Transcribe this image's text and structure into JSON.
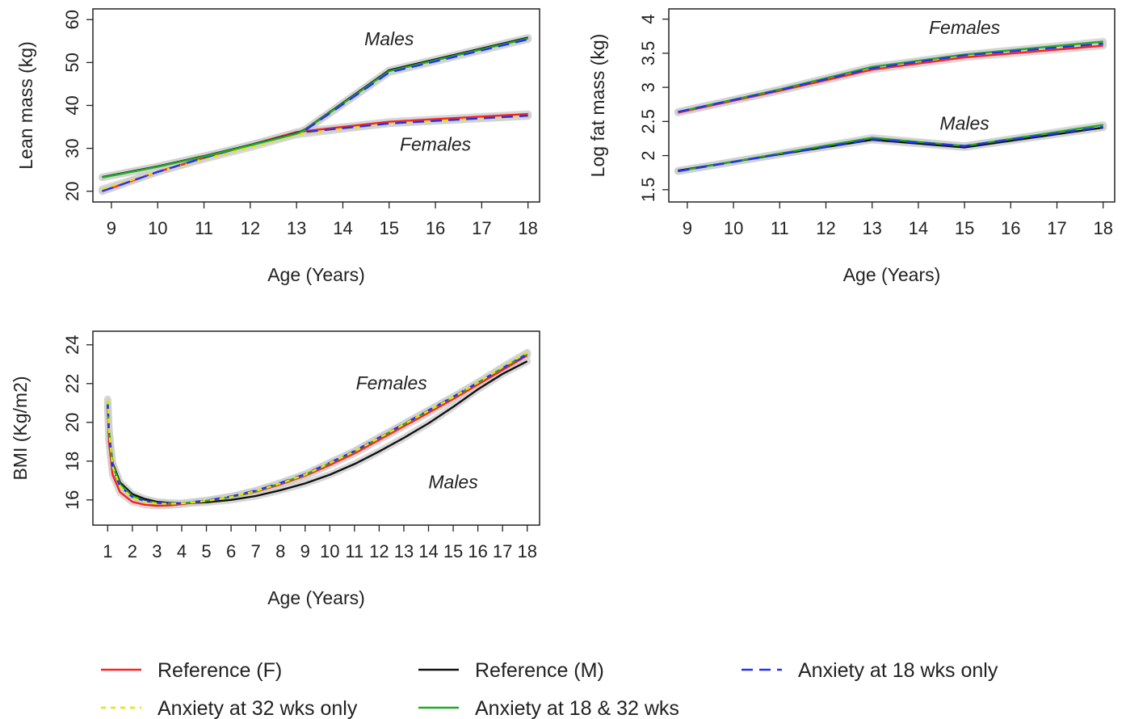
{
  "legend": [
    {
      "label": "Reference (F)",
      "color": "#ff2020",
      "dash": "solid"
    },
    {
      "label": "Reference (M)",
      "color": "#111111",
      "dash": "solid"
    },
    {
      "label": "Anxiety at 18 wks only",
      "color": "#2233ee",
      "dash": "dashed"
    },
    {
      "label": "Anxiety at 32 wks only",
      "color": "#e6e600",
      "dash": "dotted"
    },
    {
      "label": "Anxiety at 18 & 32 wks",
      "color": "#22aa22",
      "dash": "solid"
    }
  ],
  "chart_data": [
    {
      "type": "line",
      "xlabel": "Age (Years)",
      "ylabel": "Lean mass (kg)",
      "xlim": [
        8.6,
        18.25
      ],
      "ylim": [
        17.5,
        62.5
      ],
      "xticks": [
        9,
        10,
        11,
        12,
        13,
        14,
        15,
        16,
        17,
        18
      ],
      "yticks": [
        20,
        30,
        40,
        50,
        60
      ],
      "annotations": [
        {
          "text": "Males",
          "x": 15,
          "y": 54
        },
        {
          "text": "Females",
          "x": 16,
          "y": 29.5
        }
      ],
      "series": [
        {
          "name": "Reference (F)",
          "x": [
            8.8,
            10,
            11,
            12,
            13,
            15,
            18
          ],
          "y": [
            20.0,
            24.5,
            27.8,
            30.8,
            33.8,
            36.2,
            38.0
          ]
        },
        {
          "name": "Anxiety at 32 wks only",
          "x": [
            8.8,
            10,
            11,
            12,
            13,
            15,
            18
          ],
          "y": [
            20.5,
            24.5,
            27.5,
            30.2,
            33.2,
            35.8,
            37.5
          ]
        },
        {
          "name": "Anxiety at 18 wks only",
          "x": [
            8.8,
            10,
            11,
            12,
            13,
            15,
            18
          ],
          "y": [
            20.0,
            24.5,
            27.8,
            30.8,
            33.6,
            35.8,
            37.6
          ]
        },
        {
          "name": "Reference (M)",
          "x": [
            8.8,
            10,
            11,
            12,
            13,
            13.2,
            15,
            18
          ],
          "y": [
            23.3,
            25.8,
            28.2,
            30.8,
            33.5,
            34.5,
            48.2,
            55.8
          ]
        },
        {
          "name": "Anxiety at 18 & 32 wks",
          "x": [
            8.8,
            10,
            11,
            12,
            13,
            13.2,
            15,
            18
          ],
          "y": [
            23.2,
            25.7,
            28.1,
            30.7,
            33.4,
            34.4,
            48.0,
            55.6
          ]
        },
        {
          "name": "Anxiety at 18 wks only",
          "x": [
            13.2,
            15,
            18
          ],
          "y": [
            34.3,
            47.7,
            55.4
          ]
        }
      ]
    },
    {
      "type": "line",
      "xlabel": "Age (Years)",
      "ylabel": "Log fat mass (kg)",
      "xlim": [
        8.6,
        18.25
      ],
      "ylim": [
        1.32,
        4.15
      ],
      "xticks": [
        9,
        10,
        11,
        12,
        13,
        14,
        15,
        16,
        17,
        18
      ],
      "yticks": [
        1.5,
        2,
        2.5,
        3,
        3.5,
        4
      ],
      "ytick_labels": [
        "1.5",
        "2",
        "2.5",
        "3",
        "3.5",
        "4"
      ],
      "annotations": [
        {
          "text": "Females",
          "x": 15,
          "y": 3.78
        },
        {
          "text": "Males",
          "x": 15,
          "y": 2.38
        }
      ],
      "series": [
        {
          "name": "Reference (F)",
          "x": [
            8.8,
            11,
            13,
            15,
            18
          ],
          "y": [
            2.63,
            2.95,
            3.26,
            3.44,
            3.61
          ]
        },
        {
          "name": "Anxiety at 18 & 32 wks",
          "x": [
            8.8,
            11,
            13,
            15,
            18
          ],
          "y": [
            2.64,
            2.97,
            3.3,
            3.48,
            3.67
          ]
        },
        {
          "name": "Anxiety at 18 wks only",
          "x": [
            8.8,
            11,
            13,
            15,
            18
          ],
          "y": [
            2.64,
            2.96,
            3.28,
            3.47,
            3.64
          ]
        },
        {
          "name": "Reference (M)",
          "x": [
            8.8,
            11,
            13,
            15,
            18
          ],
          "y": [
            1.78,
            2.02,
            2.23,
            2.12,
            2.41
          ]
        },
        {
          "name": "Anxiety at 18 & 32 wks",
          "x": [
            8.8,
            11,
            13,
            15,
            18
          ],
          "y": [
            1.77,
            2.03,
            2.26,
            2.14,
            2.45
          ]
        },
        {
          "name": "Anxiety at 18 wks only",
          "x": [
            8.8,
            11,
            13,
            15,
            18
          ],
          "y": [
            1.77,
            2.02,
            2.24,
            2.14,
            2.42
          ]
        }
      ]
    },
    {
      "type": "line",
      "xlabel": "Age (Years)",
      "ylabel": "BMI (Kg/m2)",
      "xlim": [
        0.4,
        18.5
      ],
      "ylim": [
        14.7,
        24.7
      ],
      "xticks": [
        1,
        2,
        3,
        4,
        5,
        6,
        7,
        8,
        9,
        10,
        11,
        12,
        13,
        14,
        15,
        16,
        17,
        18
      ],
      "yticks": [
        16,
        18,
        20,
        22,
        24
      ],
      "annotations": [
        {
          "text": "Females",
          "x": 12.5,
          "y": 21.7
        },
        {
          "text": "Males",
          "x": 15,
          "y": 16.6
        }
      ],
      "series": [
        {
          "name": "Reference (M)",
          "x": [
            1,
            1.05,
            1.2,
            1.5,
            2,
            2.5,
            3,
            3.5,
            4,
            5,
            6,
            7,
            8,
            9,
            10,
            11,
            12,
            13,
            14,
            15,
            16,
            17,
            18
          ],
          "y": [
            20.9,
            19.5,
            17.9,
            16.9,
            16.3,
            16.05,
            15.9,
            15.85,
            15.82,
            15.88,
            16.0,
            16.2,
            16.5,
            16.85,
            17.3,
            17.85,
            18.5,
            19.2,
            19.95,
            20.8,
            21.7,
            22.5,
            23.15
          ]
        },
        {
          "name": "Reference (F)",
          "x": [
            1,
            1.05,
            1.2,
            1.5,
            2,
            2.5,
            3,
            3.5,
            4,
            5,
            6,
            7,
            8,
            9,
            10,
            11,
            12,
            13,
            14,
            15,
            16,
            17,
            18
          ],
          "y": [
            20.8,
            19.0,
            17.3,
            16.4,
            15.9,
            15.75,
            15.7,
            15.72,
            15.78,
            15.95,
            16.15,
            16.42,
            16.8,
            17.25,
            17.8,
            18.4,
            19.1,
            19.8,
            20.5,
            21.2,
            21.95,
            22.7,
            23.45
          ]
        },
        {
          "name": "Anxiety at 18 & 32 wks",
          "x": [
            1,
            1.05,
            1.2,
            1.5,
            2,
            2.5,
            3,
            3.5,
            4,
            5,
            6,
            7,
            8,
            9,
            10,
            11,
            12,
            13,
            14,
            15,
            16,
            17,
            18
          ],
          "y": [
            21.1,
            19.6,
            17.8,
            16.8,
            16.2,
            15.95,
            15.85,
            15.82,
            15.82,
            15.95,
            16.15,
            16.45,
            16.85,
            17.3,
            17.9,
            18.5,
            19.2,
            19.9,
            20.6,
            21.3,
            22.05,
            22.8,
            23.55
          ]
        },
        {
          "name": "Anxiety at 18 wks only",
          "x": [
            1,
            1.05,
            1.2,
            1.5,
            2,
            2.5,
            3,
            3.5,
            4,
            5,
            6,
            7,
            8,
            9,
            10,
            11,
            12,
            13,
            14,
            15,
            16,
            17,
            18
          ],
          "y": [
            20.9,
            19.4,
            17.6,
            16.7,
            16.15,
            15.95,
            15.85,
            15.82,
            15.83,
            15.97,
            16.18,
            16.48,
            16.88,
            17.33,
            17.92,
            18.52,
            19.22,
            19.92,
            20.62,
            21.32,
            22.05,
            22.8,
            23.5
          ]
        },
        {
          "name": "Anxiety at 32 wks only",
          "x": [
            1,
            1.05,
            1.2,
            1.5,
            2,
            2.5,
            3,
            3.5,
            4,
            5,
            6,
            7,
            8,
            9,
            10,
            11,
            12,
            13,
            14,
            15,
            16,
            17,
            18
          ],
          "y": [
            21.2,
            19.6,
            17.7,
            16.7,
            16.1,
            15.9,
            15.8,
            15.8,
            15.82,
            15.95,
            16.15,
            16.45,
            16.85,
            17.3,
            17.9,
            18.5,
            19.2,
            19.9,
            20.6,
            21.3,
            22.05,
            22.85,
            23.6
          ]
        }
      ]
    }
  ]
}
